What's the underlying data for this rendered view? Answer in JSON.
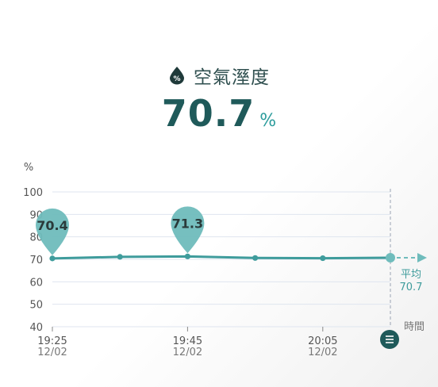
{
  "header": {
    "icon": "humidity-drop-icon",
    "title": "空氣溼度",
    "value": "70.7",
    "unit": "%"
  },
  "chart": {
    "y_unit": "%",
    "x_axis_title": "時間",
    "avg_label": "平均",
    "avg_value": "70.7",
    "callouts": [
      "70.4",
      "71.3"
    ],
    "x_ticks": [
      {
        "time": "19:25",
        "date": "12/02"
      },
      {
        "time": "19:45",
        "date": "12/02"
      },
      {
        "time": "20:05",
        "date": "12/02"
      }
    ],
    "menu_icon": "menu-icon"
  },
  "colors": {
    "accent": "#3f9c9c",
    "accent_light": "#6fbcbc",
    "dark_teal": "#1f5a5a",
    "grid": "#dfe5ef"
  },
  "chart_data": {
    "type": "line",
    "ylabel": "%",
    "xlabel": "時間",
    "ylim": [
      40,
      100
    ],
    "yticks": [
      40,
      50,
      60,
      70,
      80,
      90,
      100
    ],
    "x_tick_labels": [
      "19:25 12/02",
      "19:45 12/02",
      "20:05 12/02"
    ],
    "series": [
      {
        "values": [
          70.4,
          71.1,
          71.3,
          70.6,
          70.5,
          70.7
        ]
      }
    ],
    "average": 70.7
  }
}
